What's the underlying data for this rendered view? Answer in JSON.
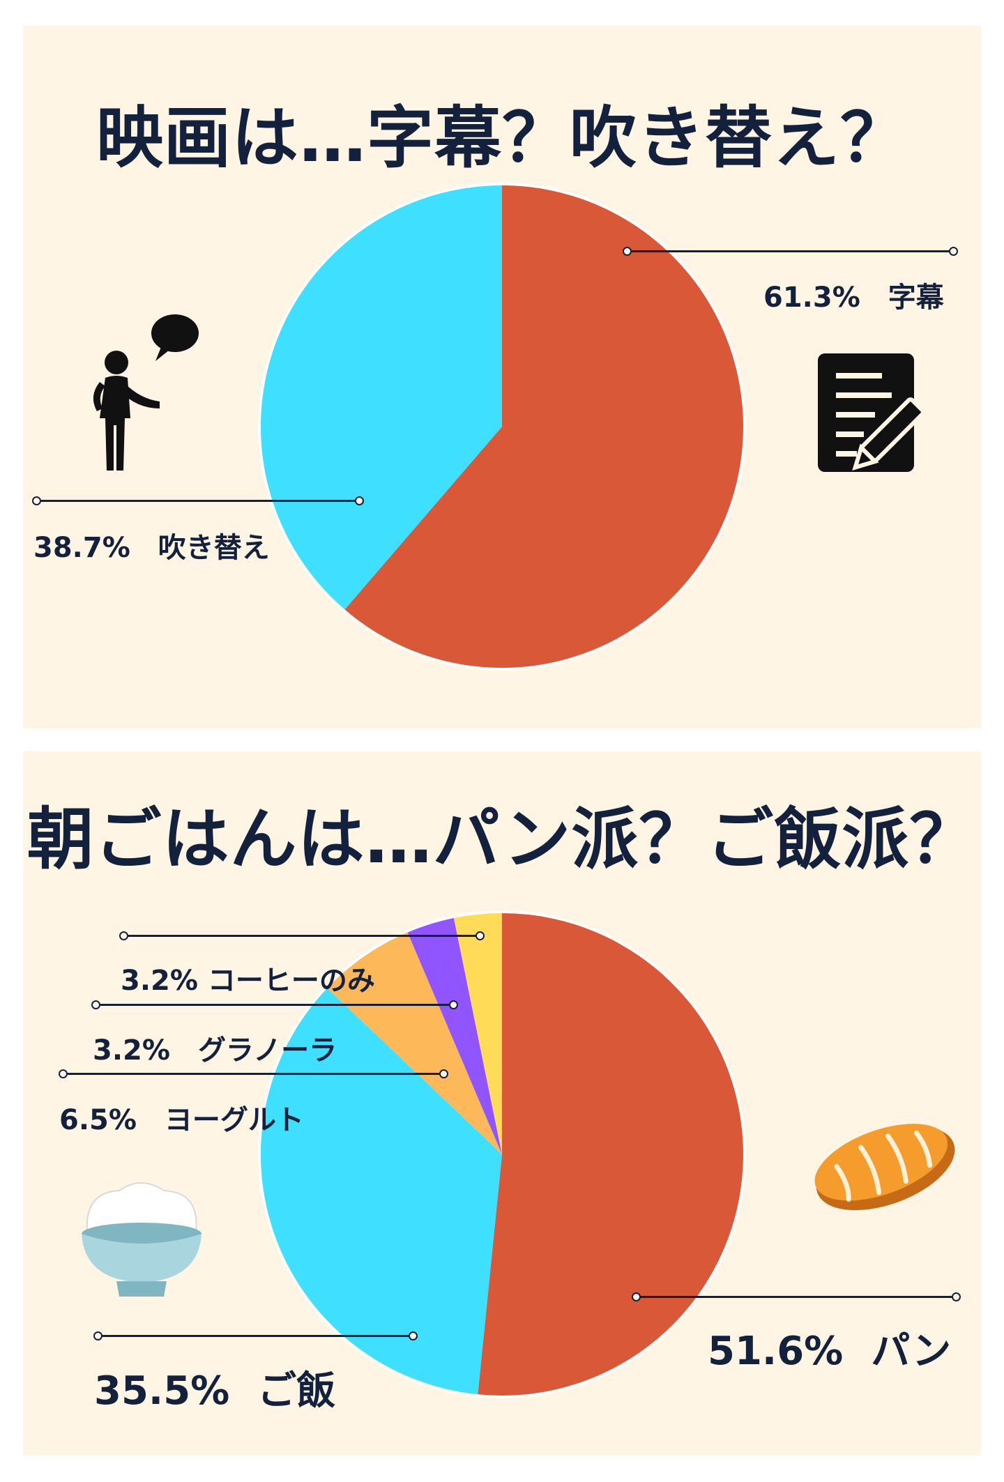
{
  "chart_data": [
    {
      "type": "pie",
      "title": "映画は…字幕？吹き替え？",
      "slices": [
        {
          "label": "字幕",
          "value": 61.3,
          "display": "61.3%",
          "color": "#d95838"
        },
        {
          "label": "吹き替え",
          "value": 38.7,
          "display": "38.7%",
          "color": "#3fdfff"
        }
      ],
      "icons": [
        "speaking-person-icon",
        "document-pen-icon"
      ]
    },
    {
      "type": "pie",
      "title": "朝ごはんは…パン派？ご飯派？",
      "slices": [
        {
          "label": "パン",
          "value": 51.6,
          "display": "51.6%",
          "color": "#d95838"
        },
        {
          "label": "ご飯",
          "value": 35.5,
          "display": "35.5%",
          "color": "#3fdfff"
        },
        {
          "label": "ヨーグルト",
          "value": 6.5,
          "display": "6.5%",
          "color": "#fdb85a"
        },
        {
          "label": "グラノーラ",
          "value": 3.2,
          "display": "3.2%",
          "color": "#9055ff"
        },
        {
          "label": "コーヒーのみ",
          "value": 3.2,
          "display": "3.2%",
          "color": "#ffdb58"
        }
      ],
      "icons": [
        "rice-bowl-icon",
        "bread-icon"
      ]
    }
  ]
}
